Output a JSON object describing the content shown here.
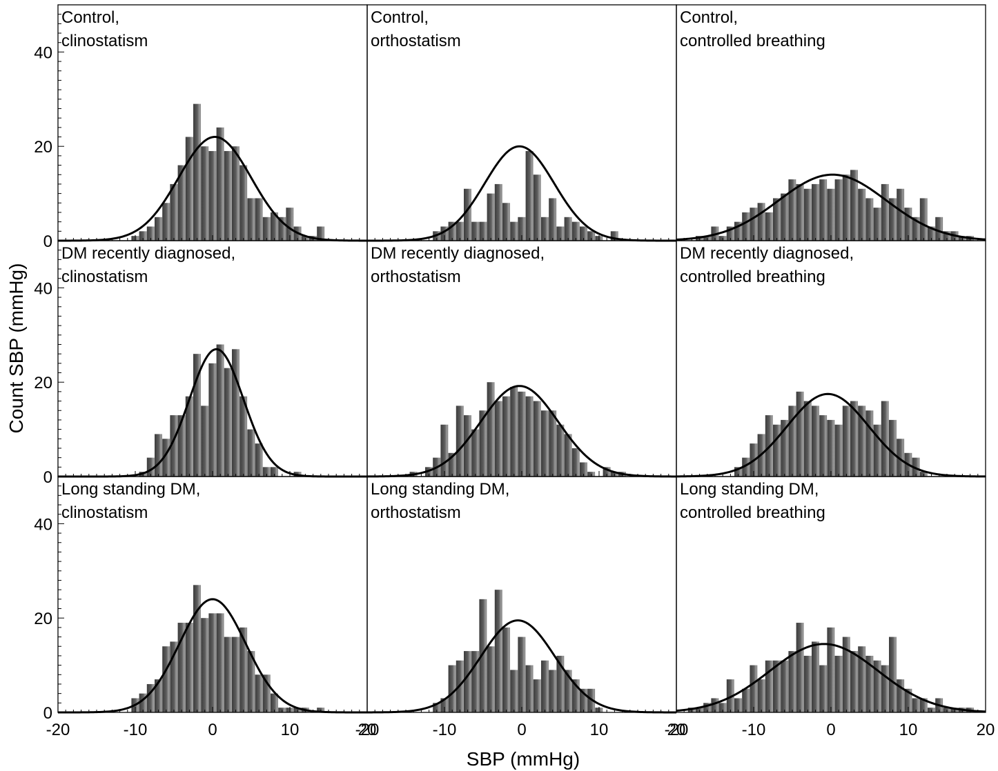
{
  "figure": {
    "ylabel": "Count SBP (mmHg)",
    "xlabel": "SBP (mmHg)",
    "colors": {
      "bar": "#5f5f5f",
      "bar_highlight": "#a8a8a8",
      "curve": "#000000",
      "axis": "#000000"
    }
  },
  "chart_data": [
    {
      "type": "bar",
      "title_lines": [
        "Control,",
        "clinostatism"
      ],
      "bin_width": 1,
      "bin_centers": [
        -10,
        -9,
        -8,
        -7,
        -6,
        -5,
        -4,
        -3,
        -2,
        -1,
        0,
        1,
        2,
        3,
        4,
        5,
        6,
        7,
        8,
        9,
        10,
        11,
        12,
        13,
        14
      ],
      "values": [
        1,
        2,
        3,
        5,
        8,
        12,
        16,
        22,
        29,
        20,
        19,
        24,
        19,
        20,
        16,
        9,
        9,
        5,
        6,
        5,
        7,
        3,
        1,
        1,
        3
      ],
      "fit": {
        "type": "normal",
        "mean": 0.3,
        "peak": 22,
        "sd": 4.7
      },
      "xlim": [
        -20,
        20
      ],
      "ylim": [
        0,
        50
      ],
      "xticks": [
        -20,
        -10,
        0,
        10,
        20
      ],
      "yticks": [
        0,
        20,
        40
      ]
    },
    {
      "type": "bar",
      "title_lines": [
        "Control,",
        "orthostatism"
      ],
      "bin_width": 1,
      "bin_centers": [
        -11,
        -10,
        -9,
        -8,
        -7,
        -6,
        -5,
        -4,
        -3,
        -2,
        -1,
        0,
        1,
        2,
        3,
        4,
        5,
        6,
        7,
        8,
        9,
        10,
        11,
        12
      ],
      "values": [
        2,
        3,
        4,
        4,
        11,
        4,
        4,
        10,
        12,
        8,
        4,
        5,
        19,
        14,
        5,
        9,
        3,
        5,
        4,
        3,
        2,
        1,
        0,
        2
      ],
      "fit": {
        "type": "normal",
        "mean": -0.3,
        "peak": 20,
        "sd": 4.5
      },
      "xlim": [
        -20,
        20
      ],
      "ylim": [
        0,
        50
      ],
      "xticks": [
        -20,
        -10,
        0,
        10,
        20
      ],
      "yticks": [
        0,
        20,
        40
      ]
    },
    {
      "type": "bar",
      "title_lines": [
        "Control,",
        "controlled breathing"
      ],
      "bin_width": 1,
      "bin_centers": [
        -17,
        -16,
        -15,
        -14,
        -13,
        -12,
        -11,
        -10,
        -9,
        -8,
        -7,
        -6,
        -5,
        -4,
        -3,
        -2,
        -1,
        0,
        1,
        2,
        3,
        4,
        5,
        6,
        7,
        8,
        9,
        10,
        11,
        12,
        13,
        14,
        15,
        16,
        17,
        18
      ],
      "values": [
        1,
        1,
        3,
        1,
        3,
        4,
        6,
        7,
        8,
        6,
        9,
        10,
        13,
        12,
        11,
        12,
        13,
        11,
        13,
        14,
        15,
        11,
        9,
        7,
        12,
        9,
        11,
        7,
        5,
        9,
        3,
        5,
        2,
        2,
        1,
        1
      ],
      "fit": {
        "type": "normal",
        "mean": 0.2,
        "peak": 14,
        "sd": 7
      },
      "xlim": [
        -20,
        20
      ],
      "ylim": [
        0,
        50
      ],
      "xticks": [
        -20,
        -10,
        0,
        10,
        20
      ],
      "yticks": [
        0,
        20,
        40
      ]
    },
    {
      "type": "bar",
      "title_lines": [
        "DM recently diagnosed,",
        "clinostatism"
      ],
      "bin_width": 1,
      "bin_centers": [
        -9,
        -8,
        -7,
        -6,
        -5,
        -4,
        -3,
        -2,
        -1,
        0,
        1,
        2,
        3,
        4,
        5,
        6,
        7,
        8,
        9,
        10,
        11,
        12
      ],
      "values": [
        1,
        4,
        9,
        8,
        13,
        13,
        17,
        26,
        15,
        24,
        28,
        23,
        27,
        17,
        10,
        7,
        2,
        2,
        0,
        0,
        1,
        0
      ],
      "fit": {
        "type": "normal",
        "mean": 0.5,
        "peak": 27,
        "sd": 3.5
      },
      "xlim": [
        -20,
        20
      ],
      "ylim": [
        0,
        50
      ],
      "xticks": [
        -20,
        -10,
        0,
        10,
        20
      ],
      "yticks": [
        0,
        20,
        40
      ]
    },
    {
      "type": "bar",
      "title_lines": [
        "DM recently diagnosed,",
        "orthostatism"
      ],
      "bin_width": 1,
      "bin_centers": [
        -15,
        -14,
        -13,
        -12,
        -11,
        -10,
        -9,
        -8,
        -7,
        -6,
        -5,
        -4,
        -3,
        -2,
        -1,
        0,
        1,
        2,
        3,
        4,
        5,
        6,
        7,
        8,
        9,
        10,
        11,
        12,
        13,
        14
      ],
      "values": [
        0,
        1,
        0,
        2,
        4,
        11,
        5,
        15,
        13,
        10,
        14,
        20,
        16,
        17,
        19,
        18,
        17,
        16,
        14,
        14,
        11,
        9,
        6,
        3,
        1,
        0,
        2,
        1,
        1,
        0
      ],
      "fit": {
        "type": "normal",
        "mean": -0.3,
        "peak": 19.2,
        "sd": 5
      },
      "xlim": [
        -20,
        20
      ],
      "ylim": [
        0,
        50
      ],
      "xticks": [
        -20,
        -10,
        0,
        10,
        20
      ],
      "yticks": [
        0,
        20,
        40
      ]
    },
    {
      "type": "bar",
      "title_lines": [
        "DM recently diagnosed,",
        "controlled breathing"
      ],
      "bin_width": 1,
      "bin_centers": [
        -12,
        -11,
        -10,
        -9,
        -8,
        -7,
        -6,
        -5,
        -4,
        -3,
        -2,
        -1,
        0,
        1,
        2,
        3,
        4,
        5,
        6,
        7,
        8,
        9,
        10,
        11,
        12
      ],
      "values": [
        2,
        4,
        7,
        9,
        13,
        11,
        12,
        15,
        18,
        16,
        15,
        13,
        12,
        11,
        15,
        16,
        15,
        14,
        11,
        16,
        12,
        8,
        5,
        4,
        1
      ],
      "fit": {
        "type": "normal",
        "mean": -0.4,
        "peak": 17.5,
        "sd": 5.3
      },
      "xlim": [
        -20,
        20
      ],
      "ylim": [
        0,
        50
      ],
      "xticks": [
        -20,
        -10,
        0,
        10,
        20
      ],
      "yticks": [
        0,
        20,
        40
      ]
    },
    {
      "type": "bar",
      "title_lines": [
        "Long standing DM,",
        "clinostatism"
      ],
      "bin_width": 1,
      "bin_centers": [
        -10,
        -9,
        -8,
        -7,
        -6,
        -5,
        -4,
        -3,
        -2,
        -1,
        0,
        1,
        2,
        3,
        4,
        5,
        6,
        7,
        8,
        9,
        10,
        11,
        12,
        13,
        14
      ],
      "values": [
        3,
        4,
        6,
        7,
        14,
        15,
        19,
        19,
        27,
        20,
        21,
        21,
        16,
        16,
        18,
        13,
        8,
        8,
        4,
        1,
        1,
        1,
        1,
        0,
        1
      ],
      "fit": {
        "type": "normal",
        "mean": 0,
        "peak": 24,
        "sd": 4.3
      },
      "xlim": [
        -20,
        20
      ],
      "ylim": [
        0,
        50
      ],
      "xticks": [
        -20,
        -10,
        0,
        10,
        20
      ],
      "yticks": [
        0,
        20,
        40
      ]
    },
    {
      "type": "bar",
      "title_lines": [
        "Long standing DM,",
        "orthostatism"
      ],
      "bin_width": 1,
      "bin_centers": [
        -11,
        -10,
        -9,
        -8,
        -7,
        -6,
        -5,
        -4,
        -3,
        -2,
        -1,
        0,
        1,
        2,
        3,
        4,
        5,
        6,
        7,
        8,
        9,
        10,
        11,
        12
      ],
      "values": [
        2,
        3,
        10,
        11,
        13,
        13,
        24,
        14,
        26,
        18,
        9,
        16,
        10,
        7,
        11,
        9,
        12,
        9,
        7,
        5,
        5,
        1,
        0,
        0
      ],
      "fit": {
        "type": "normal",
        "mean": -0.5,
        "peak": 19.5,
        "sd": 4.8
      },
      "xlim": [
        -20,
        20
      ],
      "ylim": [
        0,
        50
      ],
      "xticks": [
        -20,
        -10,
        0,
        10,
        20
      ],
      "yticks": [
        0,
        20,
        40
      ]
    },
    {
      "type": "bar",
      "title_lines": [
        "Long standing DM,",
        "controlled breathing"
      ],
      "bin_width": 1,
      "bin_centers": [
        -18,
        -17,
        -16,
        -15,
        -14,
        -13,
        -12,
        -11,
        -10,
        -9,
        -8,
        -7,
        -6,
        -5,
        -4,
        -3,
        -2,
        -1,
        0,
        1,
        2,
        3,
        4,
        5,
        6,
        7,
        8,
        9,
        10,
        11,
        12,
        13,
        14,
        15,
        16,
        17,
        18
      ],
      "values": [
        1,
        1,
        2,
        3,
        2,
        7,
        3,
        5,
        10,
        7,
        11,
        11,
        11,
        13,
        19,
        12,
        15,
        10,
        18,
        12,
        16,
        13,
        14,
        12,
        11,
        10,
        16,
        7,
        5,
        3,
        3,
        1,
        3,
        1,
        1,
        1,
        1
      ],
      "fit": {
        "type": "normal",
        "mean": -0.9,
        "peak": 14.5,
        "sd": 7
      },
      "xlim": [
        -20,
        20
      ],
      "ylim": [
        0,
        50
      ],
      "xticks": [
        -20,
        -10,
        0,
        10,
        20
      ],
      "yticks": [
        0,
        20,
        40
      ]
    }
  ]
}
